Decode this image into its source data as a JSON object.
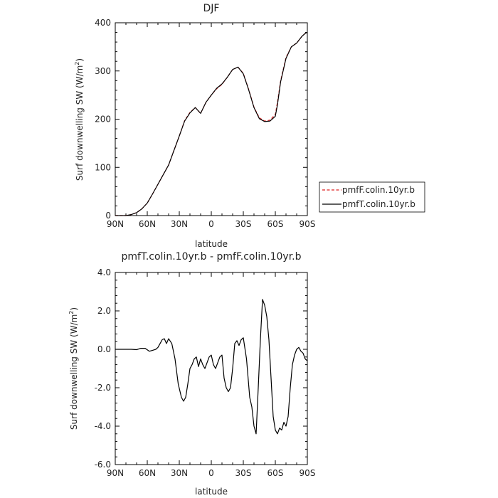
{
  "colors": {
    "pmfF": "#dd2222",
    "pmfT": "#000000",
    "axis": "#000000"
  },
  "chart_data": [
    {
      "type": "line",
      "title": "DJF",
      "xlabel": "latitude",
      "ylabel": "Surf downwelling SW (W/m²)",
      "ylabel_main": "Surf downwelling SW  (W/m",
      "ylabel_sup": "2",
      "ylabel_end": ")",
      "xlim": [
        90,
        -90
      ],
      "ylim": [
        0,
        400
      ],
      "xtick_labels": [
        "90N",
        "60N",
        "30N",
        "0",
        "30S",
        "60S",
        "90S"
      ],
      "ytick_labels": [
        "0",
        "100",
        "200",
        "300",
        "400"
      ],
      "x": [
        90,
        85,
        80,
        75,
        70,
        65,
        60,
        55,
        50,
        45,
        40,
        35,
        30,
        25,
        20,
        15,
        10,
        5,
        0,
        -5,
        -10,
        -15,
        -20,
        -25,
        -30,
        -35,
        -40,
        -45,
        -50,
        -55,
        -60,
        -62,
        -65,
        -70,
        -75,
        -80,
        -85,
        -88,
        -90
      ],
      "series": [
        {
          "name": "pmfF.colin.10yr.b",
          "style": "dashed",
          "values": [
            0,
            0,
            0,
            2,
            6,
            14,
            26,
            45,
            65,
            85,
            105,
            135,
            165,
            197,
            214,
            224,
            212,
            235,
            250,
            263,
            272,
            287,
            303,
            308,
            295,
            262,
            225,
            203,
            196,
            198,
            210,
            235,
            280,
            328,
            350,
            358,
            372,
            378,
            380
          ]
        },
        {
          "name": "pmfT.colin.10yr.b",
          "style": "solid",
          "values": [
            0,
            0,
            0,
            2,
            6,
            14,
            26,
            45,
            65,
            85,
            105,
            135,
            165,
            196,
            213,
            224,
            212,
            235,
            250,
            264,
            273,
            287,
            303,
            308,
            294,
            261,
            224,
            201,
            195,
            196,
            206,
            230,
            278,
            326,
            350,
            358,
            372,
            378,
            380
          ]
        }
      ],
      "legend": {
        "position": "right"
      }
    },
    {
      "type": "line",
      "title": "pmfT.colin.10yr.b - pmfF.colin.10yr.b",
      "xlabel": "latitude",
      "ylabel": "Surf downwelling SW (W/m²)",
      "ylabel_main": "Surf downwelling SW  (W/m",
      "ylabel_sup": "2",
      "ylabel_end": ")",
      "xlim": [
        90,
        -90
      ],
      "ylim": [
        -6,
        4
      ],
      "xtick_labels": [
        "90N",
        "60N",
        "30N",
        "0",
        "30S",
        "60S",
        "90S"
      ],
      "ytick_labels": [
        "-6.0",
        "-4.0",
        "-2.0",
        "0.0",
        "2.0",
        "4.0"
      ],
      "x": [
        90,
        85,
        80,
        75,
        70,
        66,
        62,
        58,
        55,
        52,
        50,
        48,
        46,
        44,
        42,
        40,
        37,
        34,
        31,
        28,
        26,
        24,
        22,
        20,
        18,
        16,
        14,
        12,
        10,
        8,
        6,
        4,
        2,
        0,
        -2,
        -4,
        -6,
        -8,
        -10,
        -12,
        -14,
        -16,
        -18,
        -20,
        -22,
        -24,
        -26,
        -28,
        -30,
        -33,
        -36,
        -38,
        -40,
        -42,
        -44,
        -46,
        -48,
        -50,
        -52,
        -54,
        -56,
        -58,
        -60,
        -62,
        -64,
        -66,
        -68,
        -70,
        -72,
        -74,
        -76,
        -78,
        -80,
        -82,
        -84,
        -86,
        -88,
        -90
      ],
      "series": [
        {
          "name": "pmfT.colin.10yr.b - pmfF.colin.10yr.b",
          "style": "solid",
          "values": [
            0,
            0,
            0,
            0,
            -0.02,
            0.05,
            0.05,
            -0.1,
            -0.05,
            0,
            0.1,
            0.3,
            0.5,
            0.55,
            0.3,
            0.55,
            0.3,
            -0.5,
            -1.8,
            -2.5,
            -2.7,
            -2.5,
            -1.8,
            -1.0,
            -0.8,
            -0.5,
            -0.4,
            -0.9,
            -0.5,
            -0.8,
            -1.0,
            -0.7,
            -0.4,
            -0.3,
            -0.8,
            -1.0,
            -0.7,
            -0.4,
            -0.3,
            -1.5,
            -2.0,
            -2.2,
            -2.0,
            -1.0,
            0.3,
            0.45,
            0.2,
            0.5,
            0.6,
            -0.5,
            -2.5,
            -3.0,
            -4.0,
            -4.4,
            -2.0,
            0.5,
            2.6,
            2.3,
            1.7,
            0.5,
            -1.5,
            -3.5,
            -4.2,
            -4.4,
            -4.1,
            -4.2,
            -3.8,
            -4.0,
            -3.5,
            -2.0,
            -0.8,
            -0.3,
            0.0,
            0.1,
            -0.1,
            -0.2,
            -0.5,
            -0.6
          ]
        }
      ]
    }
  ]
}
